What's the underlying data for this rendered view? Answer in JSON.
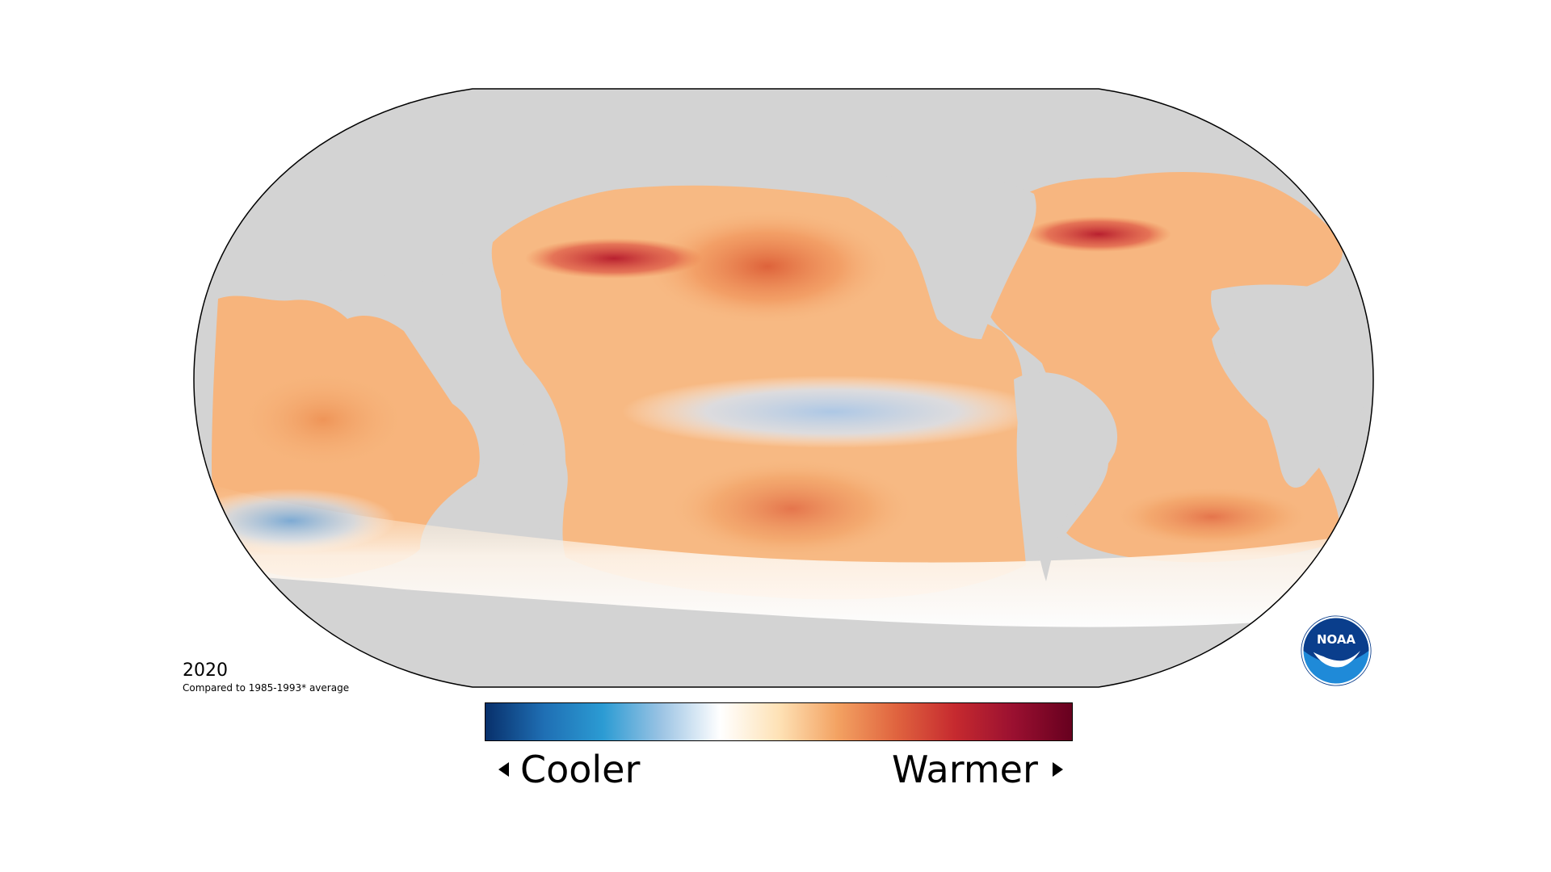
{
  "map": {
    "year": "2020",
    "comparison_note": "Compared to 1985-1993* average",
    "projection": "Robinson",
    "land_color": "#d3d3d3",
    "outline_color": "#000000"
  },
  "legend": {
    "cooler_label": "Cooler",
    "warmer_label": "Warmer",
    "gradient_colors": [
      "#08306b",
      "#1f6fb4",
      "#2b9bd3",
      "#9cc4e4",
      "#ffffff",
      "#fee2b6",
      "#f3a262",
      "#e0643f",
      "#c62a2f",
      "#9a1030",
      "#67001f"
    ]
  },
  "logo": {
    "text": "NOAA",
    "primary_color": "#0a3e8c",
    "accent_color": "#1f8ad8"
  }
}
